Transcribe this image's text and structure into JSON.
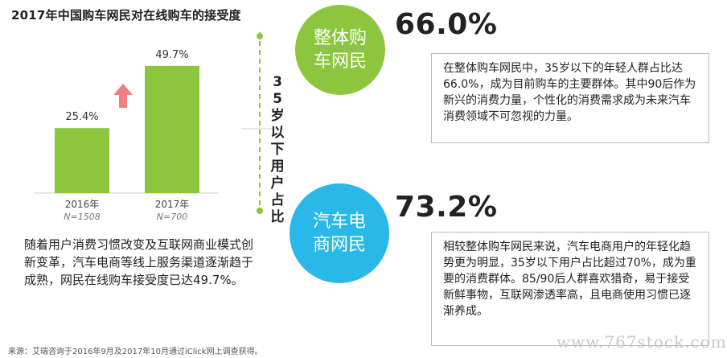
{
  "chart_data": {
    "type": "bar",
    "title": "2017年中国购车网民对在线购车的接受度",
    "categories": [
      "2016年",
      "2017年"
    ],
    "sample_sizes": [
      "N=1508",
      "N=700"
    ],
    "values": [
      25.4,
      49.7
    ],
    "value_labels": [
      "25.4%",
      "49.7%"
    ],
    "ylim": [
      0,
      55
    ],
    "grid": false,
    "colors": {
      "bar": "#8cc63f",
      "arrow": "#f08080"
    }
  },
  "left_text": "随着用户消费习惯改变及互联网商业模式创新变革，汽车电商等线上服务渠道逐渐趋于成熟，网民在线购车接受度已达49.7%。",
  "source": "来源：艾瑞咨询于2016年9月及2017年10月通过iClick网上调查获得。",
  "vertical_label": "35岁以下用户占比",
  "groups": [
    {
      "circle_label": "整体购车网民",
      "percent": "66.0%",
      "description": "在整体购车网民中，35岁以下的年轻人群占比达66.0%，成为目前购车的主要群体。其中90后作为新兴的消费力量，个性化的消费需求成为未来汽车消费领域不可忽视的力量。",
      "color": "#8cc63f"
    },
    {
      "circle_label": "汽车电商网民",
      "percent": "73.2%",
      "description": "相较整体购车网民来说，汽车电商用户的年轻化趋势更为明显，35岁以下用户占比超过70%，成为重要的消费群体。85/90后人群喜欢猎奇，易于接受新鲜事物，互联网渗透率高，且电商使用习惯已逐渐养成。",
      "color": "#29b8e8"
    }
  ],
  "watermark": "www.767stock.com"
}
